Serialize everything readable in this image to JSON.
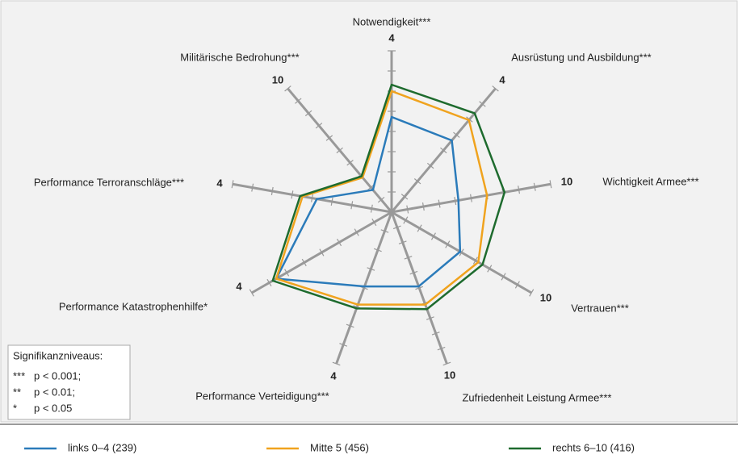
{
  "chart_data": {
    "type": "radar",
    "categories": [
      "Notwendigkeit***",
      "Ausrüstung und Ausbildung***",
      "Wichtigkeit  Armee***",
      "Vertrauen***",
      "Zufriedenheit Leistung Armee***",
      "Performance Verteidigung***",
      "Performance Katastrophenhilfe*",
      "Performance Terroranschläge***",
      "Militärische Bedrohung***"
    ],
    "axis_max": [
      4,
      4,
      10,
      10,
      10,
      4,
      4,
      4,
      10
    ],
    "series": [
      {
        "name": "links 0–4 (239)",
        "color": "#2b7bba",
        "values": [
          2.36,
          2.32,
          4.2,
          4.9,
          4.9,
          1.96,
          3.3,
          1.88,
          1.8
        ]
      },
      {
        "name": "Mitte 5 (456)",
        "color": "#f0a31e",
        "values": [
          3.0,
          2.98,
          6.0,
          6.2,
          6.1,
          2.44,
          3.3,
          2.24,
          2.8
        ]
      },
      {
        "name": "rechts  6–10 (416)",
        "color": "#1e6b2e",
        "values": [
          3.16,
          3.2,
          7.1,
          6.5,
          6.4,
          2.54,
          3.4,
          2.3,
          2.9
        ]
      }
    ],
    "note": {
      "title": "Signifikanzniveaus:",
      "rows": [
        [
          "***",
          "p < 0.001;"
        ],
        [
          "**",
          "p < 0.01;"
        ],
        [
          "*",
          "p < 0.05"
        ]
      ]
    }
  }
}
